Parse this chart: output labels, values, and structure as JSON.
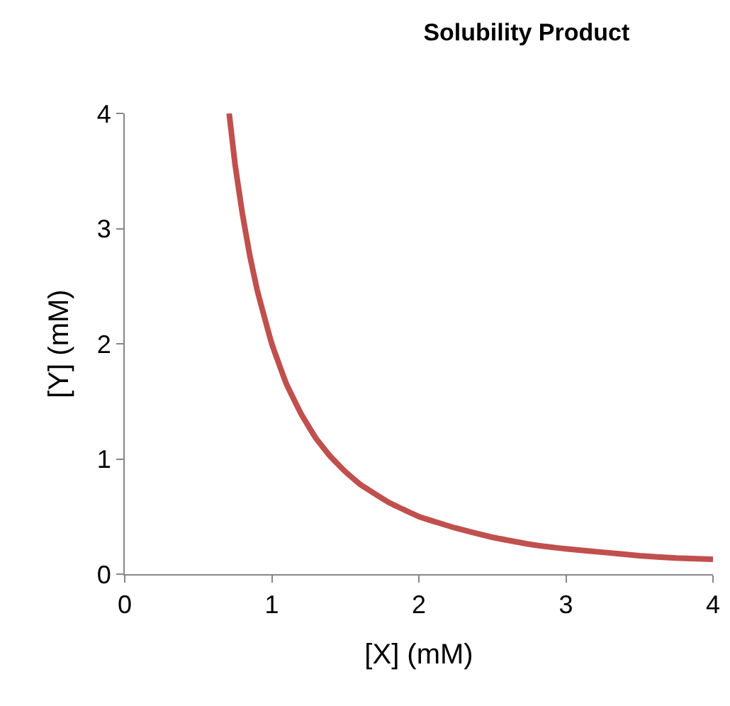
{
  "chart_data": {
    "type": "line",
    "title": "Solubility Product",
    "xlabel": "[X] (mM)",
    "ylabel": "[Y] (mM)",
    "x": [
      0.71,
      0.75,
      0.8,
      0.85,
      0.9,
      1,
      1.1,
      1.2,
      1.3,
      1.4,
      1.5,
      1.6,
      1.8,
      2,
      2.25,
      2.5,
      2.75,
      3,
      3.25,
      3.5,
      3.75,
      4
    ],
    "series": [
      {
        "color": "#c0504d",
        "values": [
          4.0,
          3.56,
          3.13,
          2.77,
          2.47,
          2.0,
          1.65,
          1.39,
          1.18,
          1.02,
          0.89,
          0.78,
          0.62,
          0.5,
          0.4,
          0.32,
          0.26,
          0.22,
          0.19,
          0.16,
          0.14,
          0.13
        ]
      }
    ],
    "xlim": [
      0,
      4
    ],
    "ylim": [
      0,
      4
    ],
    "xticks": [
      0,
      1,
      2,
      3,
      4
    ],
    "yticks": [
      0,
      1,
      2,
      3,
      4
    ],
    "legend": false,
    "marker": "none",
    "line_style": "solid"
  }
}
